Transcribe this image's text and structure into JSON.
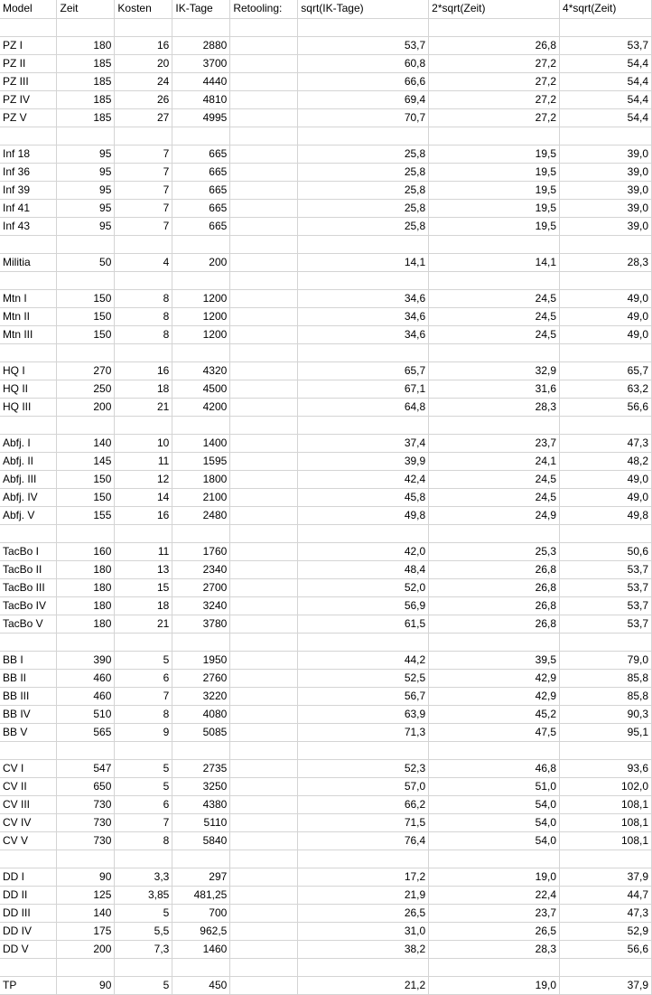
{
  "headers": [
    "Model",
    "Zeit",
    "Kosten",
    "IK-Tage",
    "Retooling:",
    "sqrt(IK-Tage)",
    "2*sqrt(Zeit)",
    "4*sqrt(Zeit)"
  ],
  "rows": [
    [
      "",
      "",
      "",
      "",
      "",
      "",
      "",
      ""
    ],
    [
      "PZ I",
      "180",
      "16",
      "2880",
      "",
      "53,7",
      "26,8",
      "53,7"
    ],
    [
      "PZ II",
      "185",
      "20",
      "3700",
      "",
      "60,8",
      "27,2",
      "54,4"
    ],
    [
      "PZ III",
      "185",
      "24",
      "4440",
      "",
      "66,6",
      "27,2",
      "54,4"
    ],
    [
      "PZ IV",
      "185",
      "26",
      "4810",
      "",
      "69,4",
      "27,2",
      "54,4"
    ],
    [
      "PZ V",
      "185",
      "27",
      "4995",
      "",
      "70,7",
      "27,2",
      "54,4"
    ],
    [
      "",
      "",
      "",
      "",
      "",
      "",
      "",
      ""
    ],
    [
      "Inf 18",
      "95",
      "7",
      "665",
      "",
      "25,8",
      "19,5",
      "39,0"
    ],
    [
      "Inf 36",
      "95",
      "7",
      "665",
      "",
      "25,8",
      "19,5",
      "39,0"
    ],
    [
      "Inf 39",
      "95",
      "7",
      "665",
      "",
      "25,8",
      "19,5",
      "39,0"
    ],
    [
      "Inf 41",
      "95",
      "7",
      "665",
      "",
      "25,8",
      "19,5",
      "39,0"
    ],
    [
      "Inf 43",
      "95",
      "7",
      "665",
      "",
      "25,8",
      "19,5",
      "39,0"
    ],
    [
      "",
      "",
      "",
      "",
      "",
      "",
      "",
      ""
    ],
    [
      "Militia",
      "50",
      "4",
      "200",
      "",
      "14,1",
      "14,1",
      "28,3"
    ],
    [
      "",
      "",
      "",
      "",
      "",
      "",
      "",
      ""
    ],
    [
      "Mtn I",
      "150",
      "8",
      "1200",
      "",
      "34,6",
      "24,5",
      "49,0"
    ],
    [
      "Mtn II",
      "150",
      "8",
      "1200",
      "",
      "34,6",
      "24,5",
      "49,0"
    ],
    [
      "Mtn III",
      "150",
      "8",
      "1200",
      "",
      "34,6",
      "24,5",
      "49,0"
    ],
    [
      "",
      "",
      "",
      "",
      "",
      "",
      "",
      ""
    ],
    [
      "HQ I",
      "270",
      "16",
      "4320",
      "",
      "65,7",
      "32,9",
      "65,7"
    ],
    [
      "HQ II",
      "250",
      "18",
      "4500",
      "",
      "67,1",
      "31,6",
      "63,2"
    ],
    [
      "HQ III",
      "200",
      "21",
      "4200",
      "",
      "64,8",
      "28,3",
      "56,6"
    ],
    [
      "",
      "",
      "",
      "",
      "",
      "",
      "",
      ""
    ],
    [
      "Abfj. I",
      "140",
      "10",
      "1400",
      "",
      "37,4",
      "23,7",
      "47,3"
    ],
    [
      "Abfj. II",
      "145",
      "11",
      "1595",
      "",
      "39,9",
      "24,1",
      "48,2"
    ],
    [
      "Abfj. III",
      "150",
      "12",
      "1800",
      "",
      "42,4",
      "24,5",
      "49,0"
    ],
    [
      "Abfj. IV",
      "150",
      "14",
      "2100",
      "",
      "45,8",
      "24,5",
      "49,0"
    ],
    [
      "Abfj. V",
      "155",
      "16",
      "2480",
      "",
      "49,8",
      "24,9",
      "49,8"
    ],
    [
      "",
      "",
      "",
      "",
      "",
      "",
      "",
      ""
    ],
    [
      "TacBo I",
      "160",
      "11",
      "1760",
      "",
      "42,0",
      "25,3",
      "50,6"
    ],
    [
      "TacBo II",
      "180",
      "13",
      "2340",
      "",
      "48,4",
      "26,8",
      "53,7"
    ],
    [
      "TacBo III",
      "180",
      "15",
      "2700",
      "",
      "52,0",
      "26,8",
      "53,7"
    ],
    [
      "TacBo IV",
      "180",
      "18",
      "3240",
      "",
      "56,9",
      "26,8",
      "53,7"
    ],
    [
      "TacBo V",
      "180",
      "21",
      "3780",
      "",
      "61,5",
      "26,8",
      "53,7"
    ],
    [
      "",
      "",
      "",
      "",
      "",
      "",
      "",
      ""
    ],
    [
      "BB I",
      "390",
      "5",
      "1950",
      "",
      "44,2",
      "39,5",
      "79,0"
    ],
    [
      "BB II",
      "460",
      "6",
      "2760",
      "",
      "52,5",
      "42,9",
      "85,8"
    ],
    [
      "BB III",
      "460",
      "7",
      "3220",
      "",
      "56,7",
      "42,9",
      "85,8"
    ],
    [
      "BB IV",
      "510",
      "8",
      "4080",
      "",
      "63,9",
      "45,2",
      "90,3"
    ],
    [
      "BB V",
      "565",
      "9",
      "5085",
      "",
      "71,3",
      "47,5",
      "95,1"
    ],
    [
      "",
      "",
      "",
      "",
      "",
      "",
      "",
      ""
    ],
    [
      "CV I",
      "547",
      "5",
      "2735",
      "",
      "52,3",
      "46,8",
      "93,6"
    ],
    [
      "CV II",
      "650",
      "5",
      "3250",
      "",
      "57,0",
      "51,0",
      "102,0"
    ],
    [
      "CV III",
      "730",
      "6",
      "4380",
      "",
      "66,2",
      "54,0",
      "108,1"
    ],
    [
      "CV IV",
      "730",
      "7",
      "5110",
      "",
      "71,5",
      "54,0",
      "108,1"
    ],
    [
      "CV V",
      "730",
      "8",
      "5840",
      "",
      "76,4",
      "54,0",
      "108,1"
    ],
    [
      "",
      "",
      "",
      "",
      "",
      "",
      "",
      ""
    ],
    [
      "DD I",
      "90",
      "3,3",
      "297",
      "",
      "17,2",
      "19,0",
      "37,9"
    ],
    [
      "DD II",
      "125",
      "3,85",
      "481,25",
      "",
      "21,9",
      "22,4",
      "44,7"
    ],
    [
      "DD III",
      "140",
      "5",
      "700",
      "",
      "26,5",
      "23,7",
      "47,3"
    ],
    [
      "DD IV",
      "175",
      "5,5",
      "962,5",
      "",
      "31,0",
      "26,5",
      "52,9"
    ],
    [
      "DD V",
      "200",
      "7,3",
      "1460",
      "",
      "38,2",
      "28,3",
      "56,6"
    ],
    [
      "",
      "",
      "",
      "",
      "",
      "",
      "",
      ""
    ],
    [
      "TP",
      "90",
      "5",
      "450",
      "",
      "21,2",
      "19,0",
      "37,9"
    ]
  ]
}
